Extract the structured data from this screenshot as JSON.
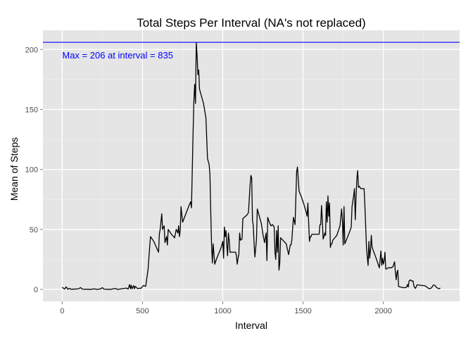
{
  "chart_data": {
    "type": "line",
    "title": "Total Steps Per Interval (NA's not replaced)",
    "xlabel": "Interval",
    "ylabel": "Mean of Steps",
    "xlim": [
      -120,
      2475
    ],
    "ylim": [
      -10,
      216
    ],
    "x_ticks": [
      0,
      500,
      1000,
      1500,
      2000
    ],
    "x_tick_labels": [
      "0",
      "500",
      "1000",
      "1500",
      "2000"
    ],
    "y_ticks": [
      0,
      50,
      100,
      150,
      200
    ],
    "y_tick_labels": [
      "0",
      "50",
      "100",
      "150",
      "200"
    ],
    "grid": true,
    "line_color": "#000000",
    "reference_line": {
      "y": 206,
      "color": "#0000ff"
    },
    "annotation": {
      "text": "Max = 206 at interval = 835",
      "x": 0,
      "y": 195,
      "color": "#0000ff"
    },
    "series": [
      {
        "values_xy": [
          [
            0,
            1.7
          ],
          [
            15,
            0.3
          ],
          [
            25,
            2.1
          ],
          [
            35,
            0
          ],
          [
            45,
            0.9
          ],
          [
            55,
            0.1
          ],
          [
            100,
            0.4
          ],
          [
            115,
            1.5
          ],
          [
            125,
            0.2
          ],
          [
            180,
            0
          ],
          [
            200,
            0.5
          ],
          [
            215,
            0
          ],
          [
            240,
            0.4
          ],
          [
            250,
            1.5
          ],
          [
            260,
            0.2
          ],
          [
            300,
            0
          ],
          [
            330,
            0.8
          ],
          [
            345,
            0
          ],
          [
            400,
            1.1
          ],
          [
            410,
            0.2
          ],
          [
            420,
            4.0
          ],
          [
            425,
            0.5
          ],
          [
            430,
            3.5
          ],
          [
            435,
            0.4
          ],
          [
            445,
            3.2
          ],
          [
            450,
            0.5
          ],
          [
            455,
            2.5
          ],
          [
            470,
            0.6
          ],
          [
            480,
            1.0
          ],
          [
            490,
            0.8
          ],
          [
            505,
            3.2
          ],
          [
            520,
            2.6
          ],
          [
            535,
            17
          ],
          [
            545,
            36
          ],
          [
            550,
            44
          ],
          [
            570,
            40
          ],
          [
            590,
            34
          ],
          [
            600,
            31
          ],
          [
            605,
            46
          ],
          [
            610,
            50
          ],
          [
            620,
            63
          ],
          [
            625,
            50
          ],
          [
            635,
            53
          ],
          [
            640,
            39
          ],
          [
            650,
            44
          ],
          [
            655,
            37
          ],
          [
            660,
            50
          ],
          [
            680,
            46
          ],
          [
            700,
            43
          ],
          [
            710,
            50
          ],
          [
            720,
            47
          ],
          [
            725,
            53
          ],
          [
            730,
            44
          ],
          [
            735,
            49
          ],
          [
            740,
            69
          ],
          [
            750,
            56
          ],
          [
            770,
            63
          ],
          [
            790,
            70
          ],
          [
            800,
            73
          ],
          [
            805,
            68
          ],
          [
            815,
            130
          ],
          [
            820,
            157
          ],
          [
            825,
            171
          ],
          [
            830,
            155
          ],
          [
            835,
            206
          ],
          [
            840,
            195
          ],
          [
            845,
            179
          ],
          [
            850,
            183
          ],
          [
            855,
            167
          ],
          [
            880,
            155
          ],
          [
            895,
            143
          ],
          [
            905,
            109
          ],
          [
            915,
            104
          ],
          [
            920,
            96
          ],
          [
            925,
            65
          ],
          [
            930,
            38
          ],
          [
            935,
            22
          ],
          [
            940,
            38
          ],
          [
            950,
            21
          ],
          [
            960,
            25
          ],
          [
            990,
            35
          ],
          [
            1000,
            40
          ],
          [
            1005,
            26
          ],
          [
            1010,
            52
          ],
          [
            1015,
            44
          ],
          [
            1020,
            49
          ],
          [
            1025,
            37
          ],
          [
            1030,
            28
          ],
          [
            1035,
            47
          ],
          [
            1040,
            41
          ],
          [
            1045,
            31
          ],
          [
            1070,
            31
          ],
          [
            1080,
            31
          ],
          [
            1085,
            28
          ],
          [
            1090,
            21
          ],
          [
            1095,
            26
          ],
          [
            1100,
            29
          ],
          [
            1105,
            47
          ],
          [
            1110,
            41
          ],
          [
            1120,
            42
          ],
          [
            1125,
            59
          ],
          [
            1150,
            62
          ],
          [
            1160,
            64
          ],
          [
            1170,
            87
          ],
          [
            1175,
            95
          ],
          [
            1180,
            93
          ],
          [
            1185,
            58
          ],
          [
            1190,
            53
          ],
          [
            1195,
            38
          ],
          [
            1200,
            27
          ],
          [
            1210,
            42
          ],
          [
            1215,
            67
          ],
          [
            1240,
            55
          ],
          [
            1250,
            46
          ],
          [
            1260,
            39
          ],
          [
            1270,
            47
          ],
          [
            1275,
            24
          ],
          [
            1280,
            60
          ],
          [
            1290,
            56
          ],
          [
            1300,
            53
          ],
          [
            1310,
            54
          ],
          [
            1320,
            52
          ],
          [
            1325,
            31
          ],
          [
            1330,
            25
          ],
          [
            1335,
            49
          ],
          [
            1340,
            31
          ],
          [
            1345,
            53
          ],
          [
            1350,
            16
          ],
          [
            1355,
            22
          ],
          [
            1360,
            43
          ],
          [
            1395,
            38
          ],
          [
            1410,
            29
          ],
          [
            1420,
            37
          ],
          [
            1425,
            37
          ],
          [
            1430,
            41
          ],
          [
            1440,
            60
          ],
          [
            1450,
            54
          ],
          [
            1460,
            98
          ],
          [
            1465,
            102
          ],
          [
            1475,
            82
          ],
          [
            1490,
            77
          ],
          [
            1505,
            71
          ],
          [
            1520,
            64
          ],
          [
            1525,
            61
          ],
          [
            1530,
            72
          ],
          [
            1535,
            55
          ],
          [
            1540,
            40
          ],
          [
            1545,
            44
          ],
          [
            1550,
            44
          ],
          [
            1555,
            46
          ],
          [
            1600,
            46
          ],
          [
            1605,
            54
          ],
          [
            1610,
            54
          ],
          [
            1615,
            70
          ],
          [
            1620,
            57
          ],
          [
            1625,
            42
          ],
          [
            1630,
            44
          ],
          [
            1635,
            47
          ],
          [
            1640,
            45
          ],
          [
            1645,
            73
          ],
          [
            1650,
            56
          ],
          [
            1655,
            78
          ],
          [
            1660,
            61
          ],
          [
            1665,
            72
          ],
          [
            1670,
            35
          ],
          [
            1675,
            38
          ],
          [
            1680,
            38
          ],
          [
            1685,
            41
          ],
          [
            1710,
            45
          ],
          [
            1730,
            53
          ],
          [
            1740,
            67
          ],
          [
            1745,
            58
          ],
          [
            1750,
            37
          ],
          [
            1755,
            69
          ],
          [
            1760,
            38
          ],
          [
            1790,
            48
          ],
          [
            1800,
            52
          ],
          [
            1805,
            69
          ],
          [
            1815,
            78
          ],
          [
            1820,
            84
          ],
          [
            1825,
            58
          ],
          [
            1830,
            77
          ],
          [
            1835,
            92
          ],
          [
            1840,
            99
          ],
          [
            1845,
            85
          ],
          [
            1850,
            86
          ],
          [
            1860,
            84
          ],
          [
            1880,
            84
          ],
          [
            1885,
            70
          ],
          [
            1895,
            35
          ],
          [
            1900,
            27
          ],
          [
            1905,
            20
          ],
          [
            1910,
            40
          ],
          [
            1915,
            26
          ],
          [
            1920,
            33
          ],
          [
            1925,
            45
          ],
          [
            1930,
            35
          ],
          [
            1955,
            26
          ],
          [
            1975,
            18
          ],
          [
            1985,
            32
          ],
          [
            1990,
            20
          ],
          [
            1995,
            26
          ],
          [
            2000,
            21
          ],
          [
            2005,
            24
          ],
          [
            2010,
            31
          ],
          [
            2015,
            17
          ],
          [
            2020,
            17
          ],
          [
            2030,
            18
          ],
          [
            2040,
            18
          ],
          [
            2050,
            18
          ],
          [
            2060,
            19
          ],
          [
            2070,
            23
          ],
          [
            2075,
            14
          ],
          [
            2080,
            8
          ],
          [
            2085,
            14
          ],
          [
            2090,
            16
          ],
          [
            2095,
            2.4
          ],
          [
            2125,
            1.4
          ],
          [
            2140,
            1.5
          ],
          [
            2145,
            2.1
          ],
          [
            2150,
            4
          ],
          [
            2155,
            2
          ],
          [
            2160,
            7
          ],
          [
            2170,
            8
          ],
          [
            2175,
            7
          ],
          [
            2185,
            7
          ],
          [
            2190,
            3
          ],
          [
            2195,
            1.5
          ],
          [
            2200,
            0.8
          ],
          [
            2210,
            3.8
          ],
          [
            2240,
            3.3
          ],
          [
            2250,
            3.2
          ],
          [
            2260,
            3.0
          ],
          [
            2285,
            0.5
          ],
          [
            2300,
            1.2
          ],
          [
            2310,
            3.5
          ],
          [
            2320,
            3.5
          ],
          [
            2330,
            1.8
          ],
          [
            2345,
            0.5
          ],
          [
            2355,
            1.1
          ]
        ]
      }
    ]
  }
}
